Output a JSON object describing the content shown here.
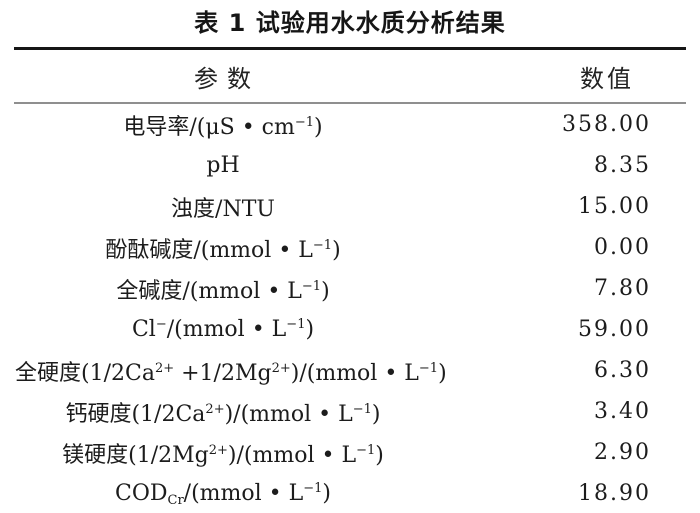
{
  "colors": {
    "background": "#ffffff",
    "text": "#1c1c1c",
    "rule_dark": "#161616",
    "rule_light": "#8f8f8f"
  },
  "title": "表 1 试验用水水质分析结果",
  "table": {
    "col_headers": {
      "param": "参数",
      "value": "数值"
    },
    "rows": [
      {
        "param": [
          {
            "t": "电导率/(μS • cm"
          },
          {
            "t": "−1",
            "s": "sup"
          },
          {
            "t": ")"
          }
        ],
        "value": "358.00"
      },
      {
        "param": [
          {
            "t": "pH"
          }
        ],
        "value": "8.35"
      },
      {
        "param": [
          {
            "t": "浊度/NTU"
          }
        ],
        "value": "15.00"
      },
      {
        "param": [
          {
            "t": "酚酞碱度/(mmol • L"
          },
          {
            "t": "−1",
            "s": "sup"
          },
          {
            "t": ")"
          }
        ],
        "value": "0.00"
      },
      {
        "param": [
          {
            "t": "全碱度/(mmol • L"
          },
          {
            "t": "−1",
            "s": "sup"
          },
          {
            "t": ")"
          }
        ],
        "value": "7.80"
      },
      {
        "param": [
          {
            "t": "Cl"
          },
          {
            "t": "−",
            "s": "sup"
          },
          {
            "t": "/(mmol • L"
          },
          {
            "t": "−1",
            "s": "sup"
          },
          {
            "t": ")"
          }
        ],
        "value": "59.00"
      },
      {
        "param": [
          {
            "t": "全硬度(1/2Ca"
          },
          {
            "t": "2+",
            "s": "sup"
          },
          {
            "t": " +1/2Mg"
          },
          {
            "t": "2+",
            "s": "sup"
          },
          {
            "t": ")/(mmol • L"
          },
          {
            "t": "−1",
            "s": "sup"
          },
          {
            "t": ")"
          }
        ],
        "value": "6.30"
      },
      {
        "param": [
          {
            "t": "钙硬度(1/2Ca"
          },
          {
            "t": "2+",
            "s": "sup"
          },
          {
            "t": ")/(mmol • L"
          },
          {
            "t": "−1",
            "s": "sup"
          },
          {
            "t": ")"
          }
        ],
        "value": "3.40"
      },
      {
        "param": [
          {
            "t": "镁硬度(1/2Mg"
          },
          {
            "t": "2+",
            "s": "sup"
          },
          {
            "t": ")/(mmol • L"
          },
          {
            "t": "−1",
            "s": "sup"
          },
          {
            "t": ")"
          }
        ],
        "value": "2.90"
      },
      {
        "param": [
          {
            "t": "COD"
          },
          {
            "t": "Cr",
            "s": "sub"
          },
          {
            "t": "/(mmol • L"
          },
          {
            "t": "−1",
            "s": "sup"
          },
          {
            "t": ")"
          }
        ],
        "value": "18.90"
      }
    ]
  },
  "chart_data": {
    "type": "table",
    "title": "表 1 试验用水水质分析结果",
    "columns": [
      "参数",
      "数值"
    ],
    "rows": [
      [
        "电导率/(μS·cm⁻¹)",
        358.0
      ],
      [
        "pH",
        8.35
      ],
      [
        "浊度/NTU",
        15.0
      ],
      [
        "酚酞碱度/(mmol·L⁻¹)",
        0.0
      ],
      [
        "全碱度/(mmol·L⁻¹)",
        7.8
      ],
      [
        "Cl⁻/(mmol·L⁻¹)",
        59.0
      ],
      [
        "全硬度(1/2Ca²⁺+1/2Mg²⁺)/(mmol·L⁻¹)",
        6.3
      ],
      [
        "钙硬度(1/2Ca²⁺)/(mmol·L⁻¹)",
        3.4
      ],
      [
        "镁硬度(1/2Mg²⁺)/(mmol·L⁻¹)",
        2.9
      ],
      [
        "COD_Cr/(mmol·L⁻¹)",
        18.9
      ]
    ]
  }
}
